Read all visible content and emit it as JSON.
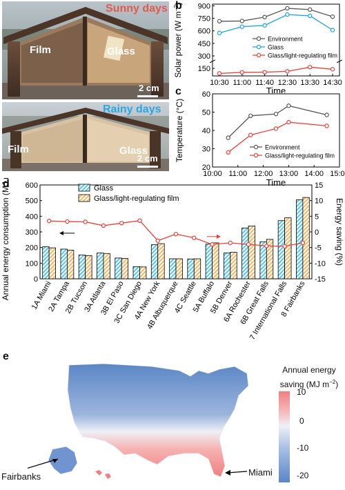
{
  "panels": {
    "a": {
      "label": "a",
      "sunny_caption": "Sunny days",
      "rainy_caption": "Rainy days",
      "film_label": "Film",
      "glass_label": "Glass",
      "scale_label": "2 cm",
      "colors": {
        "sunny": "#e05a4e",
        "rainy": "#2aa6e0"
      }
    },
    "b": {
      "label": "b"
    },
    "c": {
      "label": "c"
    },
    "d": {
      "label": "d"
    },
    "e": {
      "label": "e",
      "legend_title_line1": "Annual energy",
      "legend_title_line2": "saving (MJ m",
      "legend_title_sup": "−2",
      "legend_title_end": ")",
      "colorbar_ticks": [
        "10",
        "0",
        "-10",
        "-20"
      ],
      "colorbar_values": [
        10,
        0,
        -10,
        -20
      ],
      "city_left": "Fairbanks",
      "city_right": "Miami",
      "colors": {
        "positive": "#f08080",
        "neutral": "#eef0f6",
        "negative": "#5b86c6"
      }
    }
  },
  "chart_data": [
    {
      "id": "b",
      "type": "line",
      "xlabel": "Time",
      "ylabel": "Solar power (W m",
      "ylabel_sup": "−2",
      "ylabel_end": ")",
      "x": [
        "10:30",
        "11:00",
        "11:40",
        "12:30",
        "13:30",
        "14:30"
      ],
      "yticks": [
        150,
        300,
        450,
        600,
        750,
        900
      ],
      "ylim": [
        60,
        920
      ],
      "axis_break": true,
      "series": [
        {
          "name": "Environment",
          "color": "#555555",
          "values": [
            715,
            718,
            765,
            870,
            855,
            770
          ]
        },
        {
          "name": "Glass",
          "color": "#1aa3e0",
          "values": [
            575,
            650,
            665,
            795,
            780,
            610
          ]
        },
        {
          "name": "Glass/light-regulating film",
          "color": "#e8403a",
          "values": [
            90,
            103,
            105,
            115,
            165,
            140
          ]
        }
      ],
      "legend": "center-right"
    },
    {
      "id": "c",
      "type": "line",
      "xlabel": "Time",
      "ylabel": "Temperature (°C)",
      "xticks": [
        "10:00",
        "11:00",
        "12:00",
        "13:00",
        "14:00",
        "15:00"
      ],
      "yticks": [
        20,
        30,
        40,
        50,
        60
      ],
      "ylim": [
        20,
        60
      ],
      "series": [
        {
          "name": "Environment",
          "color": "#555555",
          "points": [
            [
              "10:37",
              36
            ],
            [
              "11:30",
              48
            ],
            [
              "12:30",
              49
            ],
            [
              "13:00",
              53.5
            ],
            [
              "14:30",
              48.5
            ]
          ]
        },
        {
          "name": "Glass/light-regulating film",
          "color": "#e8403a",
          "points": [
            [
              "10:37",
              28
            ],
            [
              "11:30",
              37.5
            ],
            [
              "12:30",
              41
            ],
            [
              "13:00",
              44.5
            ],
            [
              "14:30",
              42.5
            ]
          ]
        }
      ],
      "legend": "lower-right"
    },
    {
      "id": "d",
      "type": "bar",
      "ylabel": "Annual energy consumption (MJ m",
      "ylabel_sup": "−2",
      "ylabel_end": ")",
      "y2label": "Energy saving (%)",
      "ylim": [
        0,
        600
      ],
      "yticks": [
        0,
        100,
        200,
        300,
        400,
        500,
        600
      ],
      "y2lim": [
        -15,
        15
      ],
      "y2ticks": [
        -15,
        -10,
        -5,
        0,
        5,
        10,
        15
      ],
      "categories": [
        "1A Miami",
        "2A Tampa",
        "2B Tucson",
        "3A Atlanta",
        "3B El Paso",
        "3C San Diego",
        "4A New York",
        "4B Albuquerque",
        "4C Seattle",
        "5A Buffalo",
        "5B Denver",
        "6A Rochester",
        "6B Great Falls",
        "7 International Falls",
        "8 Fairbanks"
      ],
      "series": [
        {
          "name": "Glass",
          "color": "#57c6ec",
          "values": [
            205,
            190,
            152,
            165,
            133,
            78,
            218,
            128,
            127,
            222,
            165,
            325,
            237,
            372,
            505
          ]
        },
        {
          "name": "Glass/light-regulating film",
          "color": "#f5b664",
          "values": [
            198,
            183,
            148,
            162,
            130,
            76,
            225,
            128,
            128,
            230,
            170,
            338,
            252,
            390,
            520
          ]
        }
      ],
      "line_series": {
        "name": "Energy saving",
        "color": "#e8403a",
        "values": [
          3.5,
          3.3,
          3.2,
          2.0,
          2.8,
          3.6,
          -2.8,
          -0.7,
          -1.9,
          -4.0,
          -3.5,
          -4.0,
          -4.5,
          -4.6,
          -3.5
        ]
      },
      "legend": "top-left"
    }
  ]
}
